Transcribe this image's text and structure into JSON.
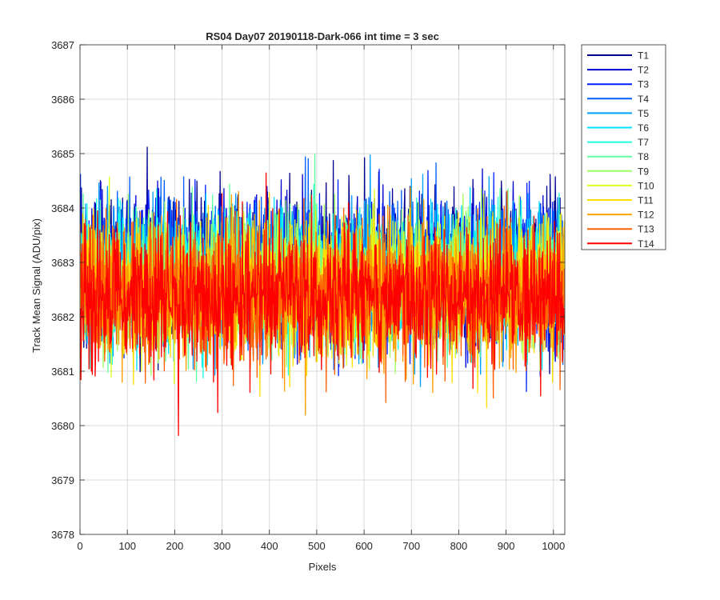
{
  "chart_data": {
    "type": "line",
    "title": "RS04 Day07 20190118-Dark-066 int time = 3 sec",
    "xlabel": "Pixels",
    "ylabel": "Track Mean Signal (ADU/pix)",
    "xlim": [
      0,
      1024
    ],
    "ylim": [
      3678,
      3687
    ],
    "xticks": [
      0,
      100,
      200,
      300,
      400,
      500,
      600,
      700,
      800,
      900,
      1000
    ],
    "yticks": [
      3678,
      3679,
      3680,
      3681,
      3682,
      3683,
      3684,
      3685,
      3686,
      3687
    ],
    "grid": true,
    "legend_position": "outside-top-right",
    "n_points": 1024,
    "series": [
      {
        "name": "T1",
        "color": "#00008F",
        "mean": 3682.95,
        "spread": 1.05,
        "seed": 11
      },
      {
        "name": "T2",
        "color": "#0000CF",
        "mean": 3682.9,
        "spread": 1.05,
        "seed": 23
      },
      {
        "name": "T3",
        "color": "#0020FF",
        "mean": 3682.85,
        "spread": 1.0,
        "seed": 37
      },
      {
        "name": "T4",
        "color": "#0060FF",
        "mean": 3682.8,
        "spread": 1.0,
        "seed": 41
      },
      {
        "name": "T5",
        "color": "#00A0FF",
        "mean": 3682.75,
        "spread": 1.0,
        "seed": 53
      },
      {
        "name": "T6",
        "color": "#00DFFF",
        "mean": 3682.7,
        "spread": 0.95,
        "seed": 67
      },
      {
        "name": "T7",
        "color": "#20FFDF",
        "mean": 3682.7,
        "spread": 0.95,
        "seed": 71
      },
      {
        "name": "T8",
        "color": "#60FF9F",
        "mean": 3682.65,
        "spread": 0.95,
        "seed": 83
      },
      {
        "name": "T9",
        "color": "#9FFF60",
        "mean": 3682.6,
        "spread": 0.95,
        "seed": 97
      },
      {
        "name": "T10",
        "color": "#DFFF20",
        "mean": 3682.55,
        "spread": 0.95,
        "seed": 101
      },
      {
        "name": "T11",
        "color": "#FFDF00",
        "mean": 3682.5,
        "spread": 0.95,
        "seed": 113
      },
      {
        "name": "T12",
        "color": "#FF9F00",
        "mean": 3682.45,
        "spread": 0.95,
        "seed": 127
      },
      {
        "name": "T13",
        "color": "#FF6000",
        "mean": 3682.4,
        "spread": 1.0,
        "seed": 131
      },
      {
        "name": "T14",
        "color": "#FF0000",
        "mean": 3682.35,
        "spread": 1.0,
        "seed": 149
      }
    ]
  }
}
